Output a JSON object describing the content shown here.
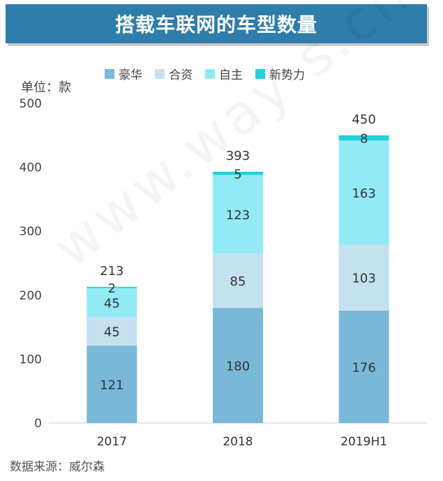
{
  "title": "搭载车联网的车型数量",
  "unit_label": "单位：款",
  "source": "数据来源：威尔森",
  "watermark": "www.way-s.cn",
  "legend": [
    {
      "label": "豪华",
      "color": "#79b8d9"
    },
    {
      "label": "合资",
      "color": "#c3e1ee"
    },
    {
      "label": "自主",
      "color": "#92eaf5"
    },
    {
      "label": "新势力",
      "color": "#1fd3de"
    }
  ],
  "chart_data": {
    "type": "bar",
    "stacked": true,
    "categories": [
      "2017",
      "2018",
      "2019H1"
    ],
    "series": [
      {
        "name": "豪华",
        "values": [
          121,
          180,
          176
        ],
        "color": "#79b8d9"
      },
      {
        "name": "合资",
        "values": [
          45,
          85,
          103
        ],
        "color": "#c3e1ee"
      },
      {
        "name": "自主",
        "values": [
          45,
          123,
          163
        ],
        "color": "#92eaf5"
      },
      {
        "name": "新势力",
        "values": [
          2,
          5,
          8
        ],
        "color": "#1fd3de"
      }
    ],
    "totals": [
      213,
      393,
      450
    ],
    "ylim": [
      0,
      500
    ],
    "yticks": [
      0,
      100,
      200,
      300,
      400,
      500
    ],
    "legend_position": "top"
  }
}
